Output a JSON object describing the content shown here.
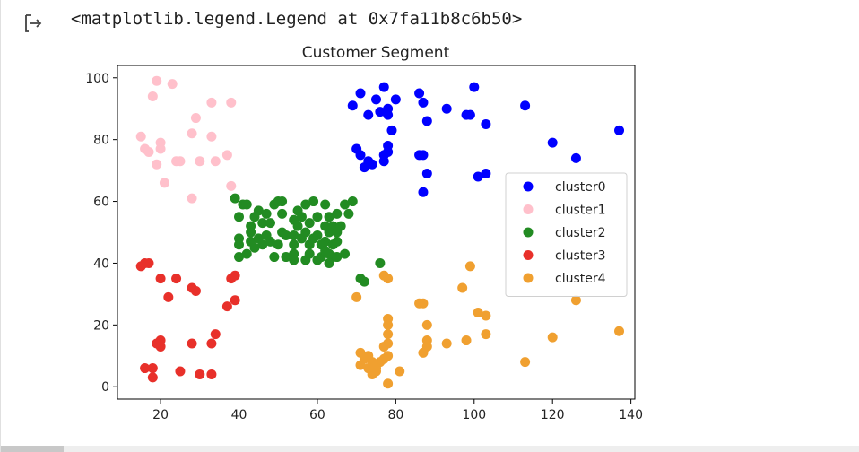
{
  "output": {
    "text": "<matplotlib.legend.Legend at 0x7fa11b8c6b50>",
    "icon": "output-arrow-icon"
  },
  "chart_data": {
    "type": "scatter",
    "title": "Customer Segment",
    "xlabel": "",
    "ylabel": "",
    "xlim": [
      9,
      141
    ],
    "ylim": [
      -4,
      104
    ],
    "xticks": [
      20,
      40,
      60,
      80,
      100,
      120,
      140
    ],
    "yticks": [
      0,
      20,
      40,
      60,
      80,
      100
    ],
    "grid": false,
    "legend_position": "center-right",
    "series": [
      {
        "name": "cluster0",
        "color": "#0000ff",
        "points": [
          [
            69,
            91
          ],
          [
            71,
            95
          ],
          [
            73,
            88
          ],
          [
            75,
            93
          ],
          [
            76,
            89
          ],
          [
            77,
            97
          ],
          [
            78,
            88
          ],
          [
            78,
            90
          ],
          [
            80,
            93
          ],
          [
            86,
            95
          ],
          [
            87,
            92
          ],
          [
            88,
            86
          ],
          [
            93,
            90
          ],
          [
            98,
            88
          ],
          [
            99,
            88
          ],
          [
            100,
            97
          ],
          [
            103,
            85
          ],
          [
            113,
            91
          ],
          [
            70,
            77
          ],
          [
            71,
            75
          ],
          [
            72,
            71
          ],
          [
            73,
            73
          ],
          [
            74,
            72
          ],
          [
            77,
            75
          ],
          [
            77,
            73
          ],
          [
            78,
            78
          ],
          [
            78,
            76
          ],
          [
            79,
            83
          ],
          [
            86,
            75
          ],
          [
            87,
            75
          ],
          [
            88,
            69
          ],
          [
            87,
            63
          ],
          [
            101,
            68
          ],
          [
            103,
            69
          ],
          [
            120,
            79
          ],
          [
            126,
            74
          ],
          [
            137,
            83
          ]
        ]
      },
      {
        "name": "cluster1",
        "color": "#ffc0cb",
        "points": [
          [
            19,
            99
          ],
          [
            23,
            98
          ],
          [
            18,
            94
          ],
          [
            29,
            87
          ],
          [
            33,
            92
          ],
          [
            38,
            92
          ],
          [
            15,
            81
          ],
          [
            16,
            77
          ],
          [
            17,
            76
          ],
          [
            19,
            72
          ],
          [
            20,
            79
          ],
          [
            20,
            77
          ],
          [
            24,
            73
          ],
          [
            25,
            73
          ],
          [
            28,
            82
          ],
          [
            30,
            73
          ],
          [
            33,
            81
          ],
          [
            34,
            73
          ],
          [
            37,
            75
          ],
          [
            38,
            65
          ],
          [
            21,
            66
          ],
          [
            28,
            61
          ]
        ]
      },
      {
        "name": "cluster2",
        "color": "#228b22",
        "points": [
          [
            39,
            61
          ],
          [
            40,
            55
          ],
          [
            41,
            59
          ],
          [
            42,
            59
          ],
          [
            43,
            52
          ],
          [
            44,
            55
          ],
          [
            40,
            48
          ],
          [
            40,
            46
          ],
          [
            42,
            43
          ],
          [
            40,
            42
          ],
          [
            43,
            50
          ],
          [
            43,
            47
          ],
          [
            44,
            45
          ],
          [
            45,
            57
          ],
          [
            45,
            48
          ],
          [
            46,
            53
          ],
          [
            46,
            46
          ],
          [
            47,
            49
          ],
          [
            47,
            56
          ],
          [
            48,
            53
          ],
          [
            48,
            47
          ],
          [
            49,
            59
          ],
          [
            49,
            42
          ],
          [
            50,
            60
          ],
          [
            50,
            46
          ],
          [
            51,
            60
          ],
          [
            51,
            56
          ],
          [
            51,
            50
          ],
          [
            52,
            49
          ],
          [
            52,
            42
          ],
          [
            54,
            54
          ],
          [
            54,
            49
          ],
          [
            55,
            57
          ],
          [
            55,
            52
          ],
          [
            56,
            55
          ],
          [
            56,
            48
          ],
          [
            57,
            59
          ],
          [
            57,
            50
          ],
          [
            58,
            53
          ],
          [
            58,
            46
          ],
          [
            59,
            60
          ],
          [
            59,
            48
          ],
          [
            60,
            55
          ],
          [
            60,
            49
          ],
          [
            61,
            42
          ],
          [
            62,
            59
          ],
          [
            62,
            52
          ],
          [
            62,
            47
          ],
          [
            63,
            55
          ],
          [
            63,
            50
          ],
          [
            64,
            52
          ],
          [
            64,
            42
          ],
          [
            65,
            56
          ],
          [
            65,
            50
          ],
          [
            66,
            52
          ],
          [
            67,
            59
          ],
          [
            67,
            43
          ],
          [
            68,
            56
          ],
          [
            69,
            60
          ],
          [
            60,
            41
          ],
          [
            61,
            46
          ],
          [
            62,
            44
          ],
          [
            63,
            43
          ],
          [
            64,
            46
          ],
          [
            65,
            47
          ],
          [
            54,
            46
          ],
          [
            54,
            43
          ],
          [
            54,
            41
          ],
          [
            57,
            41
          ],
          [
            58,
            43
          ],
          [
            63,
            40
          ],
          [
            65,
            42
          ],
          [
            71,
            35
          ],
          [
            72,
            34
          ],
          [
            76,
            40
          ]
        ]
      },
      {
        "name": "cluster3",
        "color": "#e8302a",
        "points": [
          [
            15,
            39
          ],
          [
            16,
            40
          ],
          [
            17,
            40
          ],
          [
            20,
            35
          ],
          [
            24,
            35
          ],
          [
            28,
            32
          ],
          [
            29,
            31
          ],
          [
            38,
            35
          ],
          [
            39,
            36
          ],
          [
            37,
            26
          ],
          [
            39,
            28
          ],
          [
            22,
            29
          ],
          [
            19,
            14
          ],
          [
            20,
            15
          ],
          [
            20,
            13
          ],
          [
            28,
            14
          ],
          [
            33,
            14
          ],
          [
            34,
            17
          ],
          [
            16,
            6
          ],
          [
            18,
            6
          ],
          [
            18,
            3
          ],
          [
            25,
            5
          ],
          [
            30,
            4
          ],
          [
            33,
            4
          ]
        ]
      },
      {
        "name": "cluster4",
        "color": "#f0a030",
        "points": [
          [
            70,
            29
          ],
          [
            77,
            36
          ],
          [
            78,
            35
          ],
          [
            86,
            27
          ],
          [
            87,
            27
          ],
          [
            88,
            20
          ],
          [
            97,
            32
          ],
          [
            99,
            39
          ],
          [
            101,
            24
          ],
          [
            103,
            23
          ],
          [
            103,
            17
          ],
          [
            120,
            16
          ],
          [
            126,
            28
          ],
          [
            137,
            18
          ],
          [
            113,
            8
          ],
          [
            78,
            22
          ],
          [
            78,
            20
          ],
          [
            78,
            17
          ],
          [
            78,
            14
          ],
          [
            77,
            13
          ],
          [
            78,
            10
          ],
          [
            76,
            8
          ],
          [
            71,
            11
          ],
          [
            72,
            9
          ],
          [
            73,
            10
          ],
          [
            74,
            8
          ],
          [
            75,
            5
          ],
          [
            78,
            1
          ],
          [
            81,
            5
          ],
          [
            87,
            11
          ],
          [
            88,
            13
          ],
          [
            88,
            15
          ],
          [
            93,
            14
          ],
          [
            98,
            15
          ],
          [
            71,
            7
          ],
          [
            73,
            6
          ],
          [
            77,
            9
          ],
          [
            75,
            6
          ],
          [
            74,
            4
          ]
        ]
      }
    ]
  }
}
